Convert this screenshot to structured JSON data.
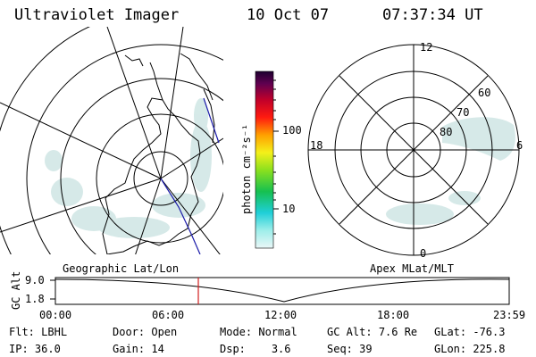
{
  "header": {
    "instrument": "Ultraviolet Imager",
    "date": "10 Oct 07",
    "time": "07:37:34 UT"
  },
  "colorbar": {
    "unit_label": "photon cm⁻²s⁻¹",
    "ticks": [
      "100",
      "10"
    ]
  },
  "apex_dial": {
    "mlt_labels": [
      "12",
      "6",
      "0",
      "18"
    ],
    "mlat_labels": [
      "60",
      "70",
      "80"
    ]
  },
  "panel_titles": {
    "left": "Geographic Lat/Lon",
    "right": "Apex MLat/MLT"
  },
  "altitude_plot": {
    "ylabel": "GC Alt",
    "yticks": [
      "9.0",
      "1.8"
    ],
    "xticks": [
      "00:00",
      "06:00",
      "12:00",
      "18:00",
      "23:59"
    ],
    "current_time_marker": "07:37:34"
  },
  "info": {
    "row1": [
      {
        "label": "Flt:",
        "value": "LBHL"
      },
      {
        "label": "Door:",
        "value": "Open"
      },
      {
        "label": "Mode:",
        "value": "Normal"
      },
      {
        "label": "GC Alt:",
        "value": "7.6 Re"
      },
      {
        "label": "GLat:",
        "value": "-76.3"
      }
    ],
    "row2": [
      {
        "label": "IP:",
        "value": "36.0"
      },
      {
        "label": "Gain:",
        "value": "14"
      },
      {
        "label": "Dsp:",
        "value": "3.6"
      },
      {
        "label": "Seq:",
        "value": "39"
      },
      {
        "label": "GLon:",
        "value": "225.8"
      }
    ]
  },
  "colors": {
    "foreground": "#000000",
    "background": "#ffffff",
    "aurora": "#cfe6e4",
    "track_blue": "#1a1aa8",
    "marker_red": "#d21e1e"
  }
}
